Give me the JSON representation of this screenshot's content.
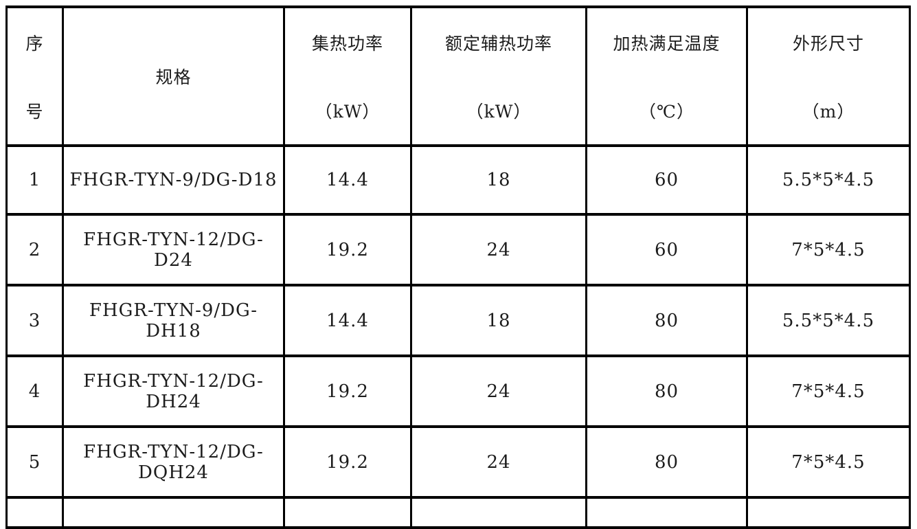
{
  "style": {
    "border_color": "#000000",
    "background_color": "#ffffff",
    "text_color": "#1c1c1c"
  },
  "table": {
    "columns": [
      {
        "id": "index",
        "line1": "序",
        "line2": "号"
      },
      {
        "id": "spec",
        "line1": "规格",
        "line2": ""
      },
      {
        "id": "collector-power",
        "line1": "集热功率",
        "line2": "（kW）"
      },
      {
        "id": "aux-heat-power",
        "line1": "额定辅热功率",
        "line2": "（kW）"
      },
      {
        "id": "heating-temp",
        "line1": "加热满足温度",
        "line2": "（℃）"
      },
      {
        "id": "dimensions",
        "line1": "外形尺寸",
        "line2": "（m）"
      }
    ],
    "rows": [
      [
        "1",
        "FHGR-TYN-9/DG-D18",
        "14.4",
        "18",
        "60",
        "5.5*5*4.5"
      ],
      [
        "2",
        "FHGR-TYN-12/DG-D24",
        "19.2",
        "24",
        "60",
        "7*5*4.5"
      ],
      [
        "3",
        "FHGR-TYN-9/DG-DH18",
        "14.4",
        "18",
        "80",
        "5.5*5*4.5"
      ],
      [
        "4",
        "FHGR-TYN-12/DG-DH24",
        "19.2",
        "24",
        "80",
        "7*5*4.5"
      ],
      [
        "5",
        "FHGR-TYN-12/DG-DQH24",
        "19.2",
        "24",
        "80",
        "7*5*4.5"
      ]
    ]
  }
}
